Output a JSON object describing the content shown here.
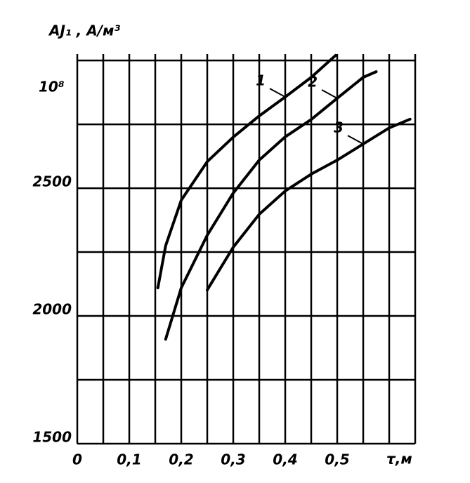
{
  "chart_data": {
    "type": "line",
    "y_label": "AJ₁ , A/м³",
    "multiplier": "10⁸",
    "x_label": "τ,м",
    "xlim": [
      0,
      0.65
    ],
    "ylim": [
      1500,
      3025
    ],
    "xticks": [
      {
        "value": 0,
        "label": "0"
      },
      {
        "value": 0.1,
        "label": "0,1"
      },
      {
        "value": 0.2,
        "label": "0,2"
      },
      {
        "value": 0.3,
        "label": "0,3"
      },
      {
        "value": 0.4,
        "label": "0,4"
      },
      {
        "value": 0.5,
        "label": "0,5"
      }
    ],
    "yticks": [
      1500,
      2000,
      2500
    ],
    "xgrid": [
      0,
      0.05,
      0.1,
      0.15,
      0.2,
      0.25,
      0.3,
      0.35,
      0.4,
      0.45,
      0.5,
      0.55,
      0.6,
      0.65
    ],
    "ygrid": [
      1500,
      1750,
      2000,
      2250,
      2500,
      2750,
      3000
    ],
    "grid": true,
    "series": [
      {
        "name": "1",
        "color": "#000000",
        "x": [
          0.155,
          0.17,
          0.2,
          0.25,
          0.3,
          0.35,
          0.4,
          0.45,
          0.497
        ],
        "values": [
          2110,
          2275,
          2453,
          2604,
          2700,
          2783,
          2857,
          2934,
          3020
        ]
      },
      {
        "name": "2",
        "color": "#000000",
        "x": [
          0.17,
          0.2,
          0.25,
          0.3,
          0.35,
          0.4,
          0.45,
          0.5,
          0.55,
          0.575
        ],
        "values": [
          1909,
          2110,
          2316,
          2481,
          2610,
          2701,
          2769,
          2852,
          2934,
          2956
        ]
      },
      {
        "name": "3",
        "color": "#000000",
        "x": [
          0.25,
          0.3,
          0.35,
          0.4,
          0.45,
          0.5,
          0.55,
          0.6,
          0.64
        ],
        "values": [
          2102,
          2269,
          2398,
          2489,
          2555,
          2610,
          2673,
          2736,
          2770
        ]
      }
    ]
  }
}
